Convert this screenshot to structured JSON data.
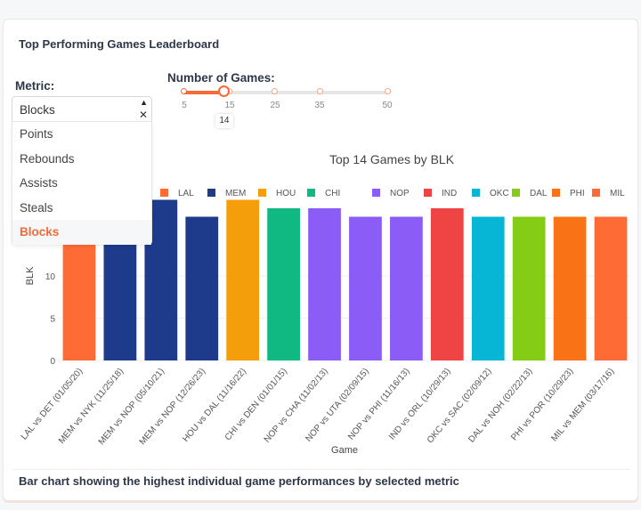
{
  "card": {
    "title": "Top Performing Games Leaderboard",
    "caption": "Bar chart showing the highest individual game performances by selected metric"
  },
  "metric": {
    "label": "Metric:",
    "selected": "Blocks",
    "options": [
      "Points",
      "Rebounds",
      "Assists",
      "Steals",
      "Blocks"
    ],
    "clear_icon": "close-icon",
    "toggle_icon": "caret-up-icon"
  },
  "games": {
    "label": "Number of Games:",
    "value": 14,
    "tooltip": "14",
    "min": 5,
    "max": 50,
    "marks": [
      "5",
      "15",
      "25",
      "35",
      "50"
    ]
  },
  "accent": "#f26b38",
  "chart_data": {
    "type": "bar",
    "title": "Top 14 Games by BLK",
    "xlabel": "Game",
    "ylabel": "BLK",
    "yticks": [
      "0",
      "5",
      "10"
    ],
    "ylim": [
      0,
      20.5
    ],
    "grid": true,
    "legend_position": "top",
    "categories": [
      "LAL vs DET (01/05/20)",
      "MEM vs NYK (11/25/18)",
      "MEM vs NOP (05/10/21)",
      "MEM vs NOP (12/26/23)",
      "HOU vs DAL (11/16/22)",
      "CHI vs DEN (01/01/15)",
      "NOP vs CHA (11/02/13)",
      "NOP vs UTA (02/09/15)",
      "NOP vs PHI (11/16/13)",
      "IND vs ORL (10/29/13)",
      "OKC vs SAC (02/09/12)",
      "DAL vs NOH (02/22/13)",
      "PHI vs POR (10/29/23)",
      "MIL vs MEM (03/17/16)"
    ],
    "values": [
      19,
      19,
      19,
      17,
      19,
      18,
      18,
      17,
      17,
      18,
      17,
      17,
      17,
      17
    ],
    "teams": [
      "LAL",
      "MEM",
      "MEM",
      "MEM",
      "HOU",
      "CHI",
      "NOP",
      "NOP",
      "NOP",
      "IND",
      "OKC",
      "DAL",
      "PHI",
      "MIL"
    ],
    "legend": [
      {
        "name": "LAL",
        "color": "#ff6b35"
      },
      {
        "name": "MEM",
        "color": "#1e3a8a"
      },
      {
        "name": "HOU",
        "color": "#f59e0b"
      },
      {
        "name": "CHI",
        "color": "#10b981"
      },
      {
        "name": "NOP",
        "color": "#8b5cf6"
      },
      {
        "name": "IND",
        "color": "#ef4444"
      },
      {
        "name": "OKC",
        "color": "#06b6d4"
      },
      {
        "name": "DAL",
        "color": "#84cc16"
      },
      {
        "name": "PHI",
        "color": "#f97316"
      },
      {
        "name": "MIL",
        "color": "#ff6b35"
      }
    ]
  }
}
